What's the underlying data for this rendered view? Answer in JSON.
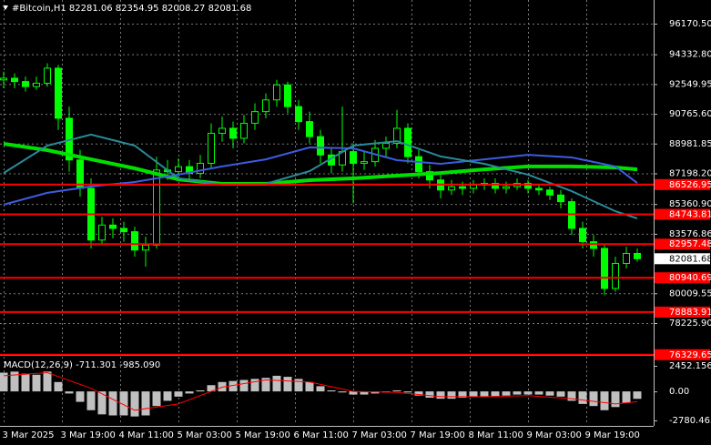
{
  "chart_data": [
    {
      "type": "candlestick",
      "title": "#Bitcoin,H1  82281.06 82354.95 82008.27 82081.68",
      "color": "#00ff00",
      "grid": true,
      "xlim": [
        -1,
        178.5
      ],
      "ylim": [
        76426,
        97588
      ],
      "yticks": [
        {
          "value": 96170.5,
          "label": "96170.50"
        },
        {
          "value": 94332.8,
          "label": "94332.80"
        },
        92549.95,
        {
          "value": 90765.6,
          "label": "90765.60"
        },
        88981.85,
        {
          "value": 87198.2,
          "label": "87198.20"
        },
        {
          "value": 85360.9,
          "label": "85360.90"
        },
        83576.86,
        80009.55,
        {
          "value": 78225.9,
          "label": "78225.90"
        }
      ],
      "xticks": [
        {
          "value": 0,
          "label": "3 Mar 2025"
        },
        {
          "value": 16,
          "label": "3 Mar 19:00"
        },
        {
          "value": 32,
          "label": "4 Mar 11:00"
        },
        {
          "value": 48,
          "label": "5 Mar 03:00"
        },
        {
          "value": 64,
          "label": "5 Mar 19:00"
        },
        {
          "value": 80,
          "label": "6 Mar 11:00"
        },
        {
          "value": 96,
          "label": "7 Mar 03:00"
        },
        {
          "value": 112,
          "label": "7 Mar 19:00"
        },
        {
          "value": 128,
          "label": "8 Mar 11:00"
        },
        {
          "value": 144,
          "label": "9 Mar 03:00"
        },
        {
          "value": 160,
          "label": "9 Mar 19:00"
        }
      ],
      "x": [
        0,
        3,
        6,
        9,
        12,
        15,
        18,
        21,
        24,
        27,
        30,
        33,
        36,
        39,
        42,
        45,
        48,
        51,
        54,
        57,
        60,
        63,
        66,
        69,
        72,
        75,
        78,
        81,
        84,
        87,
        90,
        93,
        96,
        99,
        102,
        105,
        108,
        111,
        114,
        117,
        120,
        123,
        126,
        129,
        132,
        135,
        138,
        141,
        144,
        147,
        150,
        153,
        156,
        159,
        162,
        165,
        168,
        171,
        174
      ],
      "open": [
        92800,
        92900,
        92700,
        92400,
        92600,
        93500,
        90500,
        88000,
        86300,
        83200,
        84100,
        83900,
        83700,
        82600,
        82900,
        87400,
        87300,
        87600,
        87200,
        87800,
        89600,
        89900,
        89300,
        90200,
        90900,
        91600,
        92500,
        91200,
        90300,
        89400,
        88300,
        87700,
        88500,
        87800,
        87900,
        88700,
        89000,
        89900,
        88200,
        87300,
        86800,
        86200,
        86400,
        86300,
        86500,
        86600,
        86300,
        86400,
        86600,
        86300,
        86200,
        85900,
        85500,
        83900,
        83100,
        82700,
        80300,
        81800,
        82400
      ],
      "high": [
        93300,
        93200,
        93000,
        93000,
        93800,
        93700,
        91200,
        88600,
        86900,
        84600,
        84500,
        84300,
        84000,
        83400,
        88200,
        88000,
        88100,
        88000,
        88300,
        90200,
        90600,
        90300,
        90700,
        91400,
        92000,
        92800,
        92700,
        91600,
        90900,
        89800,
        88700,
        91200,
        89000,
        88500,
        89200,
        89400,
        91000,
        90200,
        88600,
        87700,
        87100,
        86800,
        86700,
        86800,
        86900,
        86900,
        86700,
        86900,
        86800,
        86500,
        86400,
        86200,
        85700,
        84300,
        83500,
        83000,
        82200,
        82800,
        82700
      ],
      "low": [
        92300,
        92300,
        92100,
        92200,
        92400,
        89800,
        87300,
        85800,
        82700,
        82900,
        83300,
        83100,
        82200,
        81600,
        82700,
        86800,
        86900,
        86800,
        86900,
        87500,
        89100,
        88700,
        89000,
        89800,
        90500,
        91200,
        90800,
        89800,
        89000,
        87800,
        87200,
        87300,
        85400,
        87400,
        87600,
        88200,
        88700,
        87800,
        86900,
        86300,
        85700,
        85900,
        85900,
        86000,
        86200,
        86000,
        86000,
        86200,
        86000,
        85900,
        85600,
        85100,
        83500,
        82700,
        82200,
        79900,
        80100,
        81500,
        81900
      ],
      "close": [
        92900,
        92700,
        92400,
        92600,
        93500,
        90500,
        88000,
        86300,
        83200,
        84100,
        83900,
        83700,
        82600,
        82900,
        87400,
        87300,
        87600,
        87200,
        87800,
        89600,
        89900,
        89300,
        90200,
        90900,
        91600,
        92500,
        91200,
        90300,
        89400,
        88300,
        87700,
        88500,
        87800,
        87900,
        88700,
        89000,
        89900,
        88200,
        87300,
        86800,
        86200,
        86400,
        86300,
        86500,
        86600,
        86300,
        86400,
        86600,
        86300,
        86200,
        85900,
        85500,
        83900,
        83100,
        82700,
        80300,
        81800,
        82400,
        82081.68
      ],
      "series": [
        {
          "color": "#00e000",
          "x": [
            0,
            12,
            24,
            36,
            48,
            60,
            72,
            84,
            96,
            108,
            120,
            132,
            144,
            156,
            168,
            174
          ],
          "values": [
            88970,
            88590,
            88040,
            87500,
            86840,
            86570,
            86570,
            86790,
            86900,
            87060,
            87220,
            87440,
            87610,
            87610,
            87550,
            87440
          ]
        },
        {
          "color": "#3d5ce0",
          "x": [
            0,
            12,
            24,
            36,
            48,
            60,
            72,
            84,
            96,
            108,
            120,
            132,
            144,
            156,
            168,
            174
          ],
          "values": [
            85320,
            86030,
            86410,
            86680,
            87120,
            87610,
            88040,
            88750,
            88700,
            87990,
            87770,
            88040,
            88310,
            88150,
            87610,
            86620
          ]
        },
        {
          "color": "#2a8a9a",
          "x": [
            0,
            12,
            24,
            36,
            48,
            60,
            72,
            84,
            96,
            108,
            120,
            132,
            144,
            156,
            168,
            174
          ],
          "values": [
            87220,
            88860,
            89520,
            88860,
            86900,
            86520,
            86570,
            87330,
            88860,
            89130,
            88210,
            87770,
            87120,
            86130,
            84930,
            84500
          ]
        }
      ],
      "levels": [
        86526.95,
        84743.81,
        82957.48,
        80940.69,
        78883.91,
        76329.65
      ],
      "level_color": "#ff0000",
      "last": 82081.68
    },
    {
      "type": "bar",
      "title": "MACD(12,26,9) -711.301 -985.090",
      "color": "#c0c0c0",
      "grid": false,
      "xlim": [
        -1,
        178.5
      ],
      "ylim": [
        -3129,
        3324
      ],
      "yticks": [
        2452.156,
        {
          "value": 0,
          "label": "0.00"
        },
        -2780.465
      ],
      "x": [
        0,
        3,
        6,
        9,
        12,
        15,
        18,
        21,
        24,
        27,
        30,
        33,
        36,
        39,
        42,
        45,
        48,
        51,
        54,
        57,
        60,
        63,
        66,
        69,
        72,
        75,
        78,
        81,
        84,
        87,
        90,
        93,
        96,
        99,
        102,
        105,
        108,
        111,
        114,
        117,
        120,
        123,
        126,
        129,
        132,
        135,
        138,
        141,
        144,
        147,
        150,
        153,
        156,
        159,
        162,
        165,
        168,
        171,
        174
      ],
      "values": [
        1800,
        1900,
        1700,
        1600,
        1900,
        900,
        -200,
        -1000,
        -1800,
        -2200,
        -2300,
        -2300,
        -2400,
        -2300,
        -1400,
        -900,
        -500,
        -200,
        100,
        600,
        900,
        1000,
        1100,
        1200,
        1300,
        1500,
        1400,
        1200,
        900,
        500,
        100,
        -100,
        -300,
        -300,
        -200,
        -100,
        100,
        -100,
        -400,
        -600,
        -700,
        -700,
        -600,
        -500,
        -500,
        -500,
        -400,
        -300,
        -300,
        -300,
        -400,
        -500,
        -900,
        -1200,
        -1400,
        -1800,
        -1500,
        -1100,
        -711.301
      ],
      "series": [
        {
          "color": "#ff0000",
          "x": [
            0,
            12,
            24,
            36,
            48,
            60,
            72,
            84,
            96,
            108,
            120,
            132,
            144,
            156,
            168,
            174
          ],
          "values": [
            1500,
            1800,
            300,
            -1800,
            -1200,
            400,
            1100,
            900,
            0,
            -100,
            -500,
            -500,
            -400,
            -700,
            -1200,
            -985.09
          ]
        }
      ]
    }
  ]
}
